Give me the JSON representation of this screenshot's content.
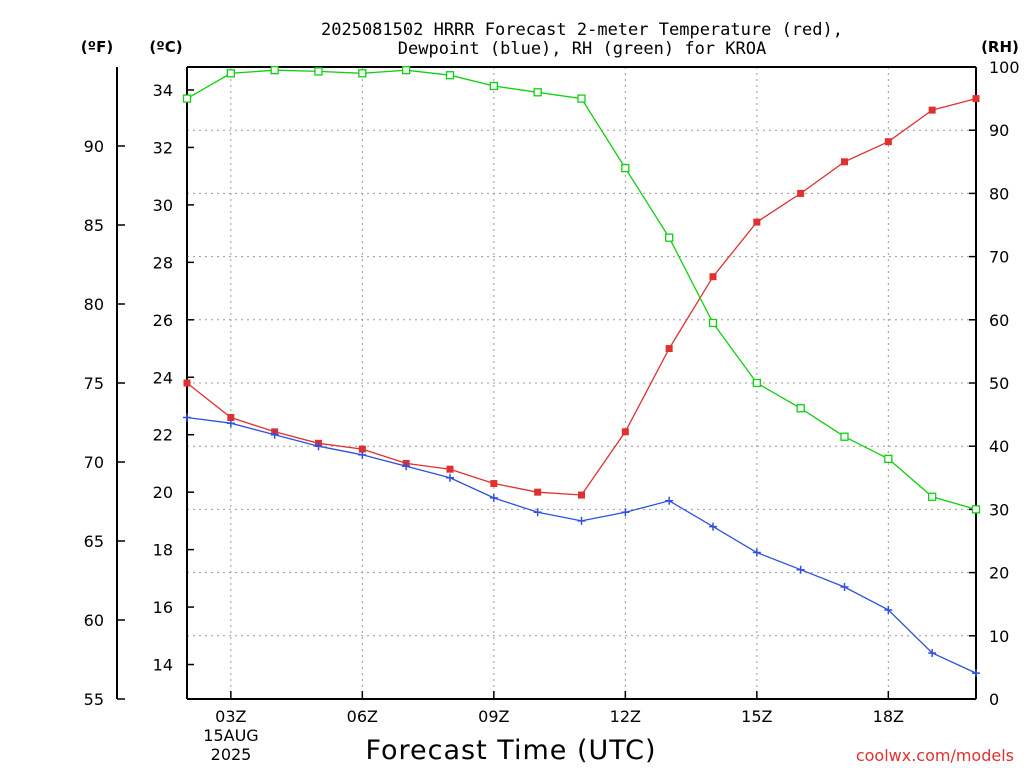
{
  "chart_data": {
    "type": "line",
    "title": [
      "2025081502 HRRR Forecast 2-meter Temperature (red),",
      "Dewpoint (blue), RH (green) for KROA"
    ],
    "xlabel": "Forecast Time (UTC)",
    "credit": "coolwx.com/models",
    "units": {
      "fahrenheit": "(ºF)",
      "celsius": "(ºC)",
      "rh": "(RH)"
    },
    "date_label": {
      "day": "15AUG",
      "year": "2025"
    },
    "x_hours": [
      2,
      3,
      4,
      5,
      6,
      7,
      8,
      9,
      10,
      11,
      12,
      13,
      14,
      15,
      16,
      17,
      18,
      19,
      20
    ],
    "x_ticks": [
      {
        "hour": 3,
        "label": "03Z"
      },
      {
        "hour": 6,
        "label": "06Z"
      },
      {
        "hour": 9,
        "label": "09Z"
      },
      {
        "hour": 12,
        "label": "12Z"
      },
      {
        "hour": 15,
        "label": "15Z"
      },
      {
        "hour": 18,
        "label": "18Z"
      }
    ],
    "xlim": [
      2,
      20
    ],
    "celsius_axis": {
      "ylim": [
        12.8,
        34.8
      ],
      "ticks": [
        14,
        16,
        18,
        20,
        22,
        24,
        26,
        28,
        30,
        32,
        34
      ]
    },
    "fahrenheit_axis": {
      "ylim": [
        55,
        95
      ],
      "ticks": [
        55,
        60,
        65,
        70,
        75,
        80,
        85,
        90
      ]
    },
    "rh_axis": {
      "ylim": [
        0,
        100
      ],
      "ticks": [
        0,
        10,
        20,
        30,
        40,
        50,
        60,
        70,
        80,
        90,
        100
      ]
    },
    "grid": true,
    "series": [
      {
        "name": "Temperature",
        "axis": "celsius",
        "color": "#e03030",
        "marker": "filled-square",
        "values": [
          23.8,
          22.6,
          22.1,
          21.7,
          21.5,
          21.0,
          20.8,
          20.3,
          20.0,
          19.9,
          22.1,
          25.0,
          27.5,
          29.4,
          30.4,
          31.5,
          32.2,
          33.3,
          33.7
        ]
      },
      {
        "name": "Dewpoint",
        "axis": "celsius",
        "color": "#3050e0",
        "marker": "plus",
        "values": [
          22.6,
          22.4,
          22.0,
          21.6,
          21.3,
          20.9,
          20.5,
          19.8,
          19.3,
          19.0,
          19.3,
          19.7,
          18.8,
          17.9,
          17.3,
          16.7,
          15.9,
          14.4,
          13.7
        ]
      },
      {
        "name": "RH",
        "axis": "rh",
        "color": "#10d010",
        "marker": "open-square",
        "values": [
          95,
          99,
          99.5,
          99.3,
          99,
          99.5,
          98.7,
          97,
          96,
          95,
          84,
          73,
          59.5,
          50,
          46,
          41.5,
          38,
          32,
          30
        ]
      }
    ]
  }
}
